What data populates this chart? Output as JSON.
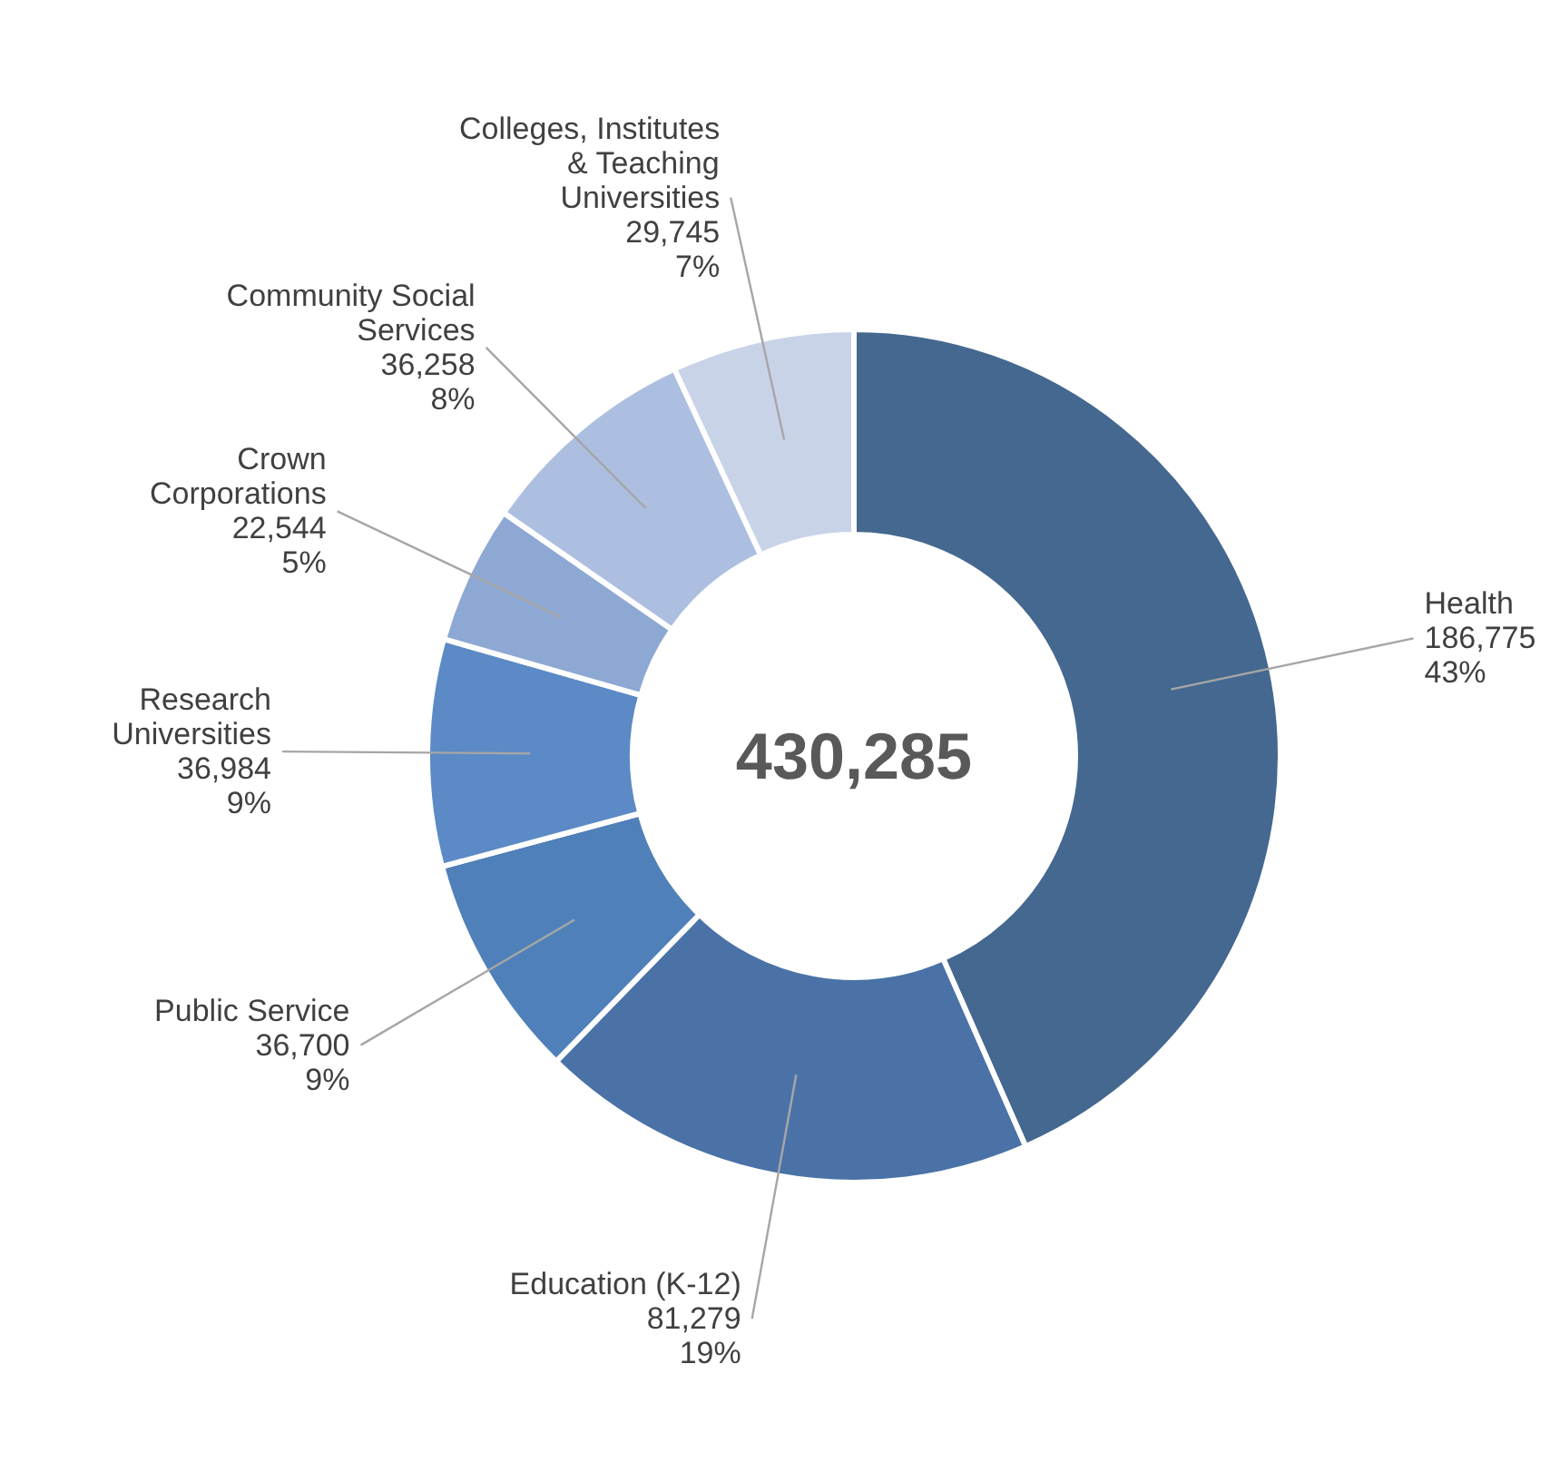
{
  "chart_data": {
    "type": "donut",
    "categories": [
      "Health",
      "Education (K-12)",
      "Public Service",
      "Research Universities",
      "Crown Corporations",
      "Community Social Services",
      "Colleges, Institutes & Teaching Universities"
    ],
    "values": [
      186775,
      81279,
      36700,
      36984,
      22544,
      36258,
      29745
    ],
    "colors": [
      "#44688f",
      "#4a72a6",
      "#5080b9",
      "#5b8ac6",
      "#8ea8d4",
      "#adbfe0",
      "#c9d3e8"
    ],
    "value_labels": [
      "186,775\n43%",
      "81,279\n19%",
      "36,700\n9%",
      "36,984\n9%",
      "22,544\n5%",
      "36,258\n8%",
      "29,745\n7%"
    ],
    "annotations": [
      "430,285"
    ]
  }
}
